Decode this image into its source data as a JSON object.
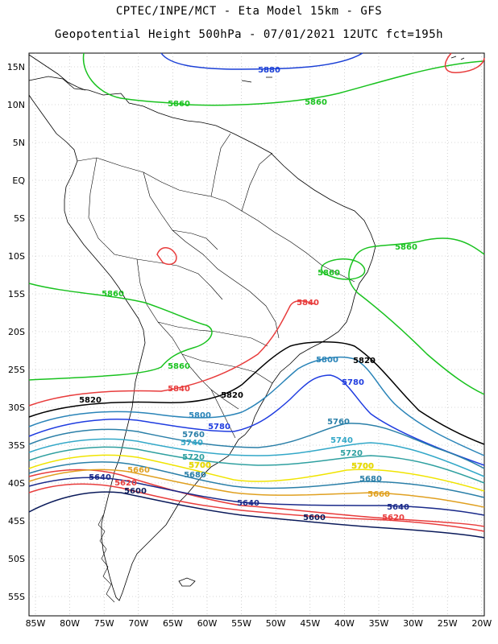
{
  "header": {
    "line1": "CPTEC/INPE/MCT -  Eta Model 15km - GFS",
    "line2": "Geopotential Height 500hPa - 07/01/2021 12UTC fct=195h"
  },
  "axes": {
    "lat_labels": [
      "15N",
      "10N",
      "5N",
      "EQ",
      "5S",
      "10S",
      "15S",
      "20S",
      "25S",
      "30S",
      "35S",
      "40S",
      "45S",
      "50S",
      "55S"
    ],
    "lon_labels": [
      "85W",
      "80W",
      "75W",
      "70W",
      "65W",
      "60W",
      "55W",
      "50W",
      "45W",
      "40W",
      "35W",
      "30W",
      "25W",
      "20W"
    ]
  },
  "colors": {
    "c5880": "#1a3fd6",
    "c5860": "#19c21f",
    "c5840": "#e83c3c",
    "c5820": "#000000",
    "c5800": "#2a84b8",
    "c5780": "#1f3ce0",
    "c5760": "#2a7fa8",
    "c5740": "#33a8c8",
    "c5720": "#2fa0a0",
    "c5700": "#f0e400",
    "c5660": "#e0a020",
    "c5640": "#1a2a8a",
    "c5620": "#e83c3c",
    "c5600": "#0a1a5a",
    "coast": "#000000",
    "grid": "#b0b0b0"
  },
  "contour_labels": [
    {
      "text": "5880",
      "color": "#1a3fd6"
    },
    {
      "text": "5860",
      "color": "#19c21f"
    },
    {
      "text": "5860",
      "color": "#19c21f"
    },
    {
      "text": "5860",
      "color": "#19c21f"
    },
    {
      "text": "5860",
      "color": "#19c21f"
    },
    {
      "text": "5860",
      "color": "#19c21f"
    },
    {
      "text": "5860",
      "color": "#19c21f"
    },
    {
      "text": "5840",
      "color": "#e83c3c"
    },
    {
      "text": "5840",
      "color": "#e83c3c"
    },
    {
      "text": "5820",
      "color": "#000000"
    },
    {
      "text": "5820",
      "color": "#000000"
    },
    {
      "text": "5820",
      "color": "#000000"
    },
    {
      "text": "5800",
      "color": "#2a84b8"
    },
    {
      "text": "5800",
      "color": "#2a84b8"
    },
    {
      "text": "5780",
      "color": "#1f3ce0"
    },
    {
      "text": "5780",
      "color": "#1f3ce0"
    },
    {
      "text": "5760",
      "color": "#2a7fa8"
    },
    {
      "text": "5760",
      "color": "#2a7fa8"
    },
    {
      "text": "5740",
      "color": "#33a8c8"
    },
    {
      "text": "5740",
      "color": "#33a8c8"
    },
    {
      "text": "5720",
      "color": "#2fa0a0"
    },
    {
      "text": "5720",
      "color": "#2fa0a0"
    },
    {
      "text": "5700",
      "color": "#f0e400"
    },
    {
      "text": "5700",
      "color": "#f0e400"
    },
    {
      "text": "5680",
      "color": "#2a7fa8"
    },
    {
      "text": "5680",
      "color": "#2a7fa8"
    },
    {
      "text": "5660",
      "color": "#e0a020"
    },
    {
      "text": "5660",
      "color": "#e0a020"
    },
    {
      "text": "5640",
      "color": "#1a2a8a"
    },
    {
      "text": "5640",
      "color": "#1a2a8a"
    },
    {
      "text": "5640",
      "color": "#1a2a8a"
    },
    {
      "text": "5620",
      "color": "#e83c3c"
    },
    {
      "text": "5620",
      "color": "#e83c3c"
    },
    {
      "text": "5600",
      "color": "#0a1a5a"
    },
    {
      "text": "5600",
      "color": "#0a1a5a"
    }
  ]
}
